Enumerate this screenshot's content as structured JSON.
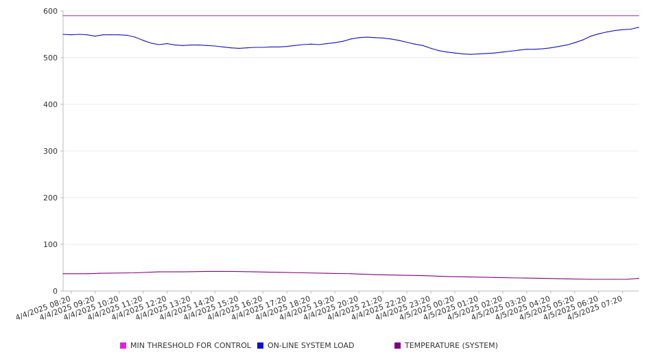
{
  "chart_data": {
    "type": "line",
    "title": "",
    "xlabel": "",
    "ylabel": "",
    "ylim": [
      0,
      600
    ],
    "yticks": [
      0,
      100,
      200,
      300,
      400,
      500,
      600
    ],
    "grid": true,
    "legend_position": "bottom",
    "x_start": "4/4/2025 08:00",
    "x_end": "4/5/2025 08:00",
    "x_tick_labels": [
      "4/4/2025 08:20",
      "4/4/2025 09:20",
      "4/4/2025 10:20",
      "4/4/2025 11:20",
      "4/4/2025 12:20",
      "4/4/2025 13:20",
      "4/4/2025 14:20",
      "4/4/2025 15:20",
      "4/4/2025 16:20",
      "4/4/2025 17:20",
      "4/4/2025 18:20",
      "4/4/2025 19:20",
      "4/4/2025 20:20",
      "4/4/2025 21:20",
      "4/4/2025 22:20",
      "4/4/2025 23:20",
      "4/5/2025 00:20",
      "4/5/2025 01:20",
      "4/5/2025 02:20",
      "4/5/2025 03:20",
      "4/5/2025 04:20",
      "4/5/2025 05:20",
      "4/5/2025 06:20",
      "4/5/2025 07:20"
    ],
    "series": [
      {
        "name": "MIN THRESHOLD FOR CONTROL",
        "color": "#e020e0",
        "line_color": "#b030c0",
        "points": [
          [
            "4/4/2025 08:00",
            590
          ],
          [
            "4/5/2025 08:00",
            590
          ]
        ]
      },
      {
        "name": "ON-LINE SYSTEM LOAD",
        "color": "#1010d0",
        "line_color": "#1010c0",
        "points": [
          [
            "4/4/2025 08:00",
            550
          ],
          [
            "4/4/2025 08:20",
            549
          ],
          [
            "4/4/2025 08:40",
            550
          ],
          [
            "4/4/2025 09:00",
            549
          ],
          [
            "4/4/2025 09:20",
            546
          ],
          [
            "4/4/2025 09:40",
            549
          ],
          [
            "4/4/2025 10:00",
            549
          ],
          [
            "4/4/2025 10:20",
            549
          ],
          [
            "4/4/2025 10:40",
            548
          ],
          [
            "4/4/2025 11:00",
            544
          ],
          [
            "4/4/2025 11:20",
            537
          ],
          [
            "4/4/2025 11:40",
            531
          ],
          [
            "4/4/2025 12:00",
            528
          ],
          [
            "4/4/2025 12:20",
            530
          ],
          [
            "4/4/2025 12:40",
            527
          ],
          [
            "4/4/2025 13:00",
            526
          ],
          [
            "4/4/2025 13:20",
            527
          ],
          [
            "4/4/2025 13:40",
            527
          ],
          [
            "4/4/2025 14:00",
            526
          ],
          [
            "4/4/2025 14:20",
            525
          ],
          [
            "4/4/2025 14:40",
            523
          ],
          [
            "4/4/2025 15:00",
            521
          ],
          [
            "4/4/2025 15:20",
            520
          ],
          [
            "4/4/2025 15:40",
            521
          ],
          [
            "4/4/2025 16:00",
            522
          ],
          [
            "4/4/2025 16:20",
            522
          ],
          [
            "4/4/2025 16:40",
            523
          ],
          [
            "4/4/2025 17:00",
            523
          ],
          [
            "4/4/2025 17:20",
            524
          ],
          [
            "4/4/2025 17:40",
            526
          ],
          [
            "4/4/2025 18:00",
            528
          ],
          [
            "4/4/2025 18:20",
            529
          ],
          [
            "4/4/2025 18:40",
            528
          ],
          [
            "4/4/2025 19:00",
            530
          ],
          [
            "4/4/2025 19:20",
            532
          ],
          [
            "4/4/2025 19:40",
            535
          ],
          [
            "4/4/2025 20:00",
            540
          ],
          [
            "4/4/2025 20:20",
            543
          ],
          [
            "4/4/2025 20:40",
            544
          ],
          [
            "4/4/2025 21:00",
            543
          ],
          [
            "4/4/2025 21:20",
            542
          ],
          [
            "4/4/2025 21:40",
            540
          ],
          [
            "4/4/2025 22:00",
            537
          ],
          [
            "4/4/2025 22:20",
            533
          ],
          [
            "4/4/2025 22:40",
            529
          ],
          [
            "4/4/2025 23:00",
            526
          ],
          [
            "4/4/2025 23:20",
            520
          ],
          [
            "4/4/2025 23:40",
            515
          ],
          [
            "4/5/2025 00:00",
            512
          ],
          [
            "4/5/2025 00:20",
            510
          ],
          [
            "4/5/2025 00:40",
            508
          ],
          [
            "4/5/2025 01:00",
            507
          ],
          [
            "4/5/2025 01:20",
            508
          ],
          [
            "4/5/2025 01:40",
            509
          ],
          [
            "4/5/2025 02:00",
            510
          ],
          [
            "4/5/2025 02:20",
            512
          ],
          [
            "4/5/2025 02:40",
            514
          ],
          [
            "4/5/2025 03:00",
            516
          ],
          [
            "4/5/2025 03:20",
            518
          ],
          [
            "4/5/2025 03:40",
            518
          ],
          [
            "4/5/2025 04:00",
            519
          ],
          [
            "4/5/2025 04:20",
            521
          ],
          [
            "4/5/2025 04:40",
            524
          ],
          [
            "4/5/2025 05:00",
            527
          ],
          [
            "4/5/2025 05:20",
            532
          ],
          [
            "4/5/2025 05:40",
            538
          ],
          [
            "4/5/2025 06:00",
            546
          ],
          [
            "4/5/2025 06:20",
            551
          ],
          [
            "4/5/2025 06:40",
            555
          ],
          [
            "4/5/2025 07:00",
            558
          ],
          [
            "4/5/2025 07:20",
            560
          ],
          [
            "4/5/2025 07:40",
            561
          ],
          [
            "4/5/2025 08:00",
            565
          ]
        ]
      },
      {
        "name": "TEMPERATURE (SYSTEM)",
        "color": "#800080",
        "line_color": "#800080",
        "points": [
          [
            "4/4/2025 08:00",
            37
          ],
          [
            "4/4/2025 09:00",
            37
          ],
          [
            "4/4/2025 09:30",
            38
          ],
          [
            "4/4/2025 11:00",
            39
          ],
          [
            "4/4/2025 12:00",
            41
          ],
          [
            "4/4/2025 13:00",
            41
          ],
          [
            "4/4/2025 14:00",
            42
          ],
          [
            "4/4/2025 15:00",
            42
          ],
          [
            "4/4/2025 16:00",
            41
          ],
          [
            "4/4/2025 17:00",
            40
          ],
          [
            "4/4/2025 18:00",
            39
          ],
          [
            "4/4/2025 19:00",
            38
          ],
          [
            "4/4/2025 20:00",
            37
          ],
          [
            "4/4/2025 21:00",
            35
          ],
          [
            "4/4/2025 22:00",
            34
          ],
          [
            "4/4/2025 23:00",
            33
          ],
          [
            "4/5/2025 00:00",
            31
          ],
          [
            "4/5/2025 01:00",
            30
          ],
          [
            "4/5/2025 02:00",
            29
          ],
          [
            "4/5/2025 03:00",
            28
          ],
          [
            "4/5/2025 04:00",
            27
          ],
          [
            "4/5/2025 05:00",
            26
          ],
          [
            "4/5/2025 06:00",
            25
          ],
          [
            "4/5/2025 07:00",
            25
          ],
          [
            "4/5/2025 07:30",
            25
          ],
          [
            "4/5/2025 08:00",
            27
          ]
        ]
      }
    ]
  }
}
